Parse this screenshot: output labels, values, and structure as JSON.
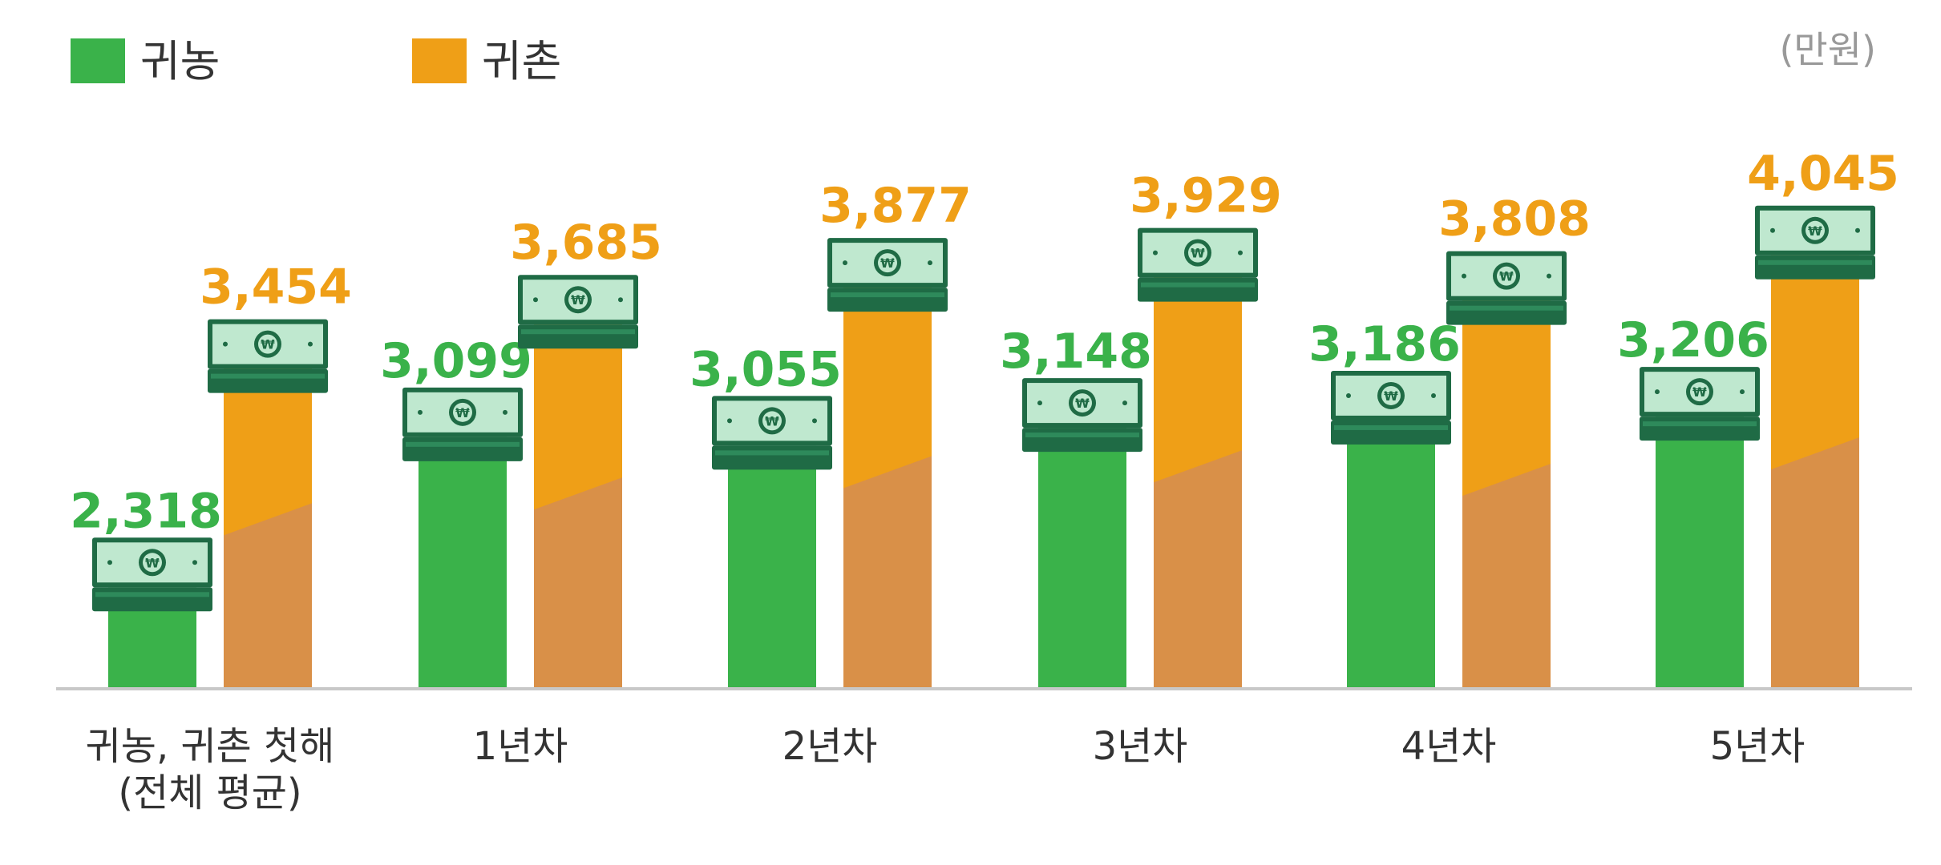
{
  "unit_label": "(만원)",
  "legend": [
    {
      "label": "귀농",
      "color": "#3ab24a"
    },
    {
      "label": "귀촌",
      "color": "#ef9f17"
    }
  ],
  "colors": {
    "green": "#3ab24a",
    "green_dark": "#2f9a3e",
    "orange": "#ef9f17",
    "orange_shade": "#d99048",
    "green_label": "#3ab24a",
    "orange_label": "#ef9f17",
    "money_light": "#bfe8cf",
    "money_dark": "#1f6b45",
    "axis": "#c8c8c8",
    "text": "#333333"
  },
  "icons": [
    "money-stack-icon",
    "won-coin-icon"
  ],
  "chart_data": {
    "type": "bar",
    "unit": "(만원)",
    "categories": [
      [
        "귀농, 귀촌 첫해",
        "(전체 평균)"
      ],
      [
        "1년차"
      ],
      [
        "2년차"
      ],
      [
        "3년차"
      ],
      [
        "4년차"
      ],
      [
        "5년차"
      ]
    ],
    "series": [
      {
        "name": "귀농",
        "values": [
          2318,
          3099,
          3055,
          3148,
          3186,
          3206
        ],
        "labels": [
          "2,318",
          "3,099",
          "3,055",
          "3,148",
          "3,186",
          "3,206"
        ]
      },
      {
        "name": "귀촌",
        "values": [
          3454,
          3685,
          3877,
          3929,
          3808,
          4045
        ],
        "labels": [
          "3,454",
          "3,685",
          "3,877",
          "3,929",
          "3,808",
          "4,045"
        ]
      }
    ],
    "legend_position": "top-left",
    "grid": false
  }
}
